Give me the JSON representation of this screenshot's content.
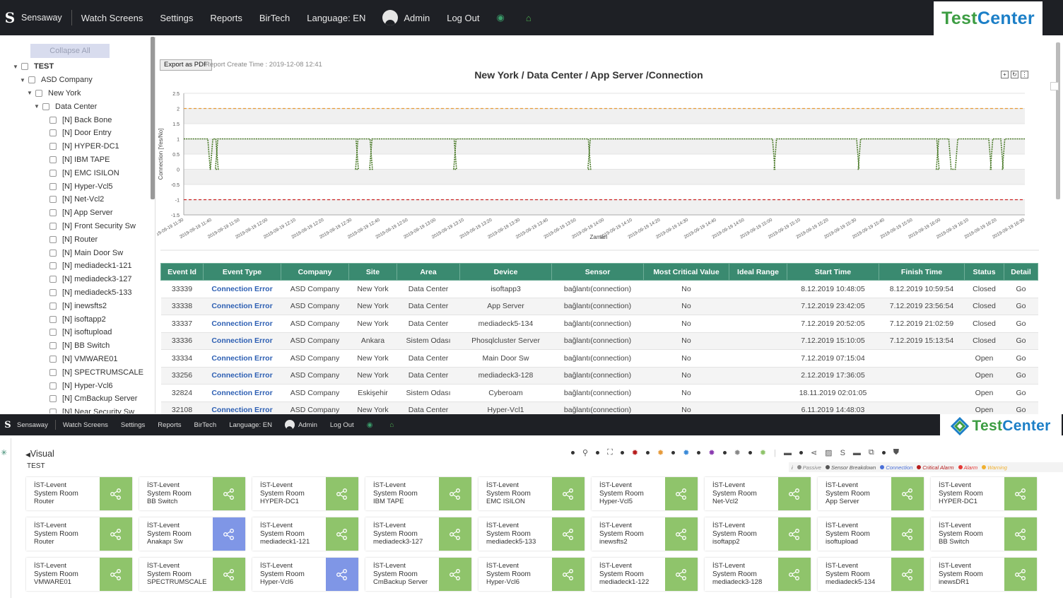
{
  "window1": {
    "brand": "Sensaway",
    "nav": [
      "Watch Screens",
      "Settings",
      "Reports",
      "BirTech",
      "Language: EN",
      "Admin",
      "Log Out"
    ],
    "logo": {
      "part1": "Test",
      "part2": "Center"
    }
  },
  "sidebar": {
    "collapse_label": "Collapse All",
    "root": "TEST",
    "company": "ASD Company",
    "site": "New York",
    "area": "Data Center",
    "devices": [
      "[N] Back Bone",
      "[N] Door Entry",
      "[N] HYPER-DC1",
      "[N] IBM TAPE",
      "[N] EMC ISILON",
      "[N] Hyper-Vcl5",
      "[N] Net-Vcl2",
      "[N] App Server",
      "[N] Front Security Sw",
      "[N] Router",
      "[N] Main Door Sw",
      "[N] mediadeck1-121",
      "[N] mediadeck3-127",
      "[N] mediadeck5-133",
      "[N] inewsfts2",
      "[N] isoftapp2",
      "[N] isoftupload",
      "[N] BB Switch",
      "[N] VMWARE01",
      "[N] SPECTRUMSCALE",
      "[N] Hyper-Vcl6",
      "[N] CmBackup Server",
      "[N] Near Security Sw"
    ]
  },
  "report": {
    "export_label": "Export as PDF",
    "create_time": "Report Create Time : 2019-12-08 12:41"
  },
  "chart_data": {
    "type": "line",
    "title": "New York / Data Center / App Server /Connection",
    "ylabel": "Connection [Yes/No]",
    "xlabel": "Zaman",
    "ylim": [
      -1.5,
      2.5
    ],
    "yticks": [
      "2.5",
      "2",
      "1.5",
      "1",
      "0.5",
      "0",
      "-0.5",
      "-1",
      "-1.5"
    ],
    "xticks": [
      "2019-09-19 11:30",
      "2019-09-19 11:40",
      "2019-09-19 11:50",
      "2019-09-19 12:00",
      "2019-09-19 12:10",
      "2019-09-19 12:20",
      "2019-09-19 12:30",
      "2019-09-19 12:40",
      "2019-09-19 12:50",
      "2019-09-19 13:00",
      "2019-09-19 13:10",
      "2019-09-19 13:20",
      "2019-09-19 13:30",
      "2019-09-19 13:40",
      "2019-09-19 13:50",
      "2019-09-19 14:00",
      "2019-09-19 14:10",
      "2019-09-19 14:20",
      "2019-09-19 14:30",
      "2019-09-19 14:40",
      "2019-09-19 14:50",
      "2019-09-19 15:00",
      "2019-09-19 15:10",
      "2019-09-19 15:20",
      "2019-09-19 15:30",
      "2019-09-19 15:40",
      "2019-09-19 15:50",
      "2019-09-19 16:00",
      "2019-09-19 16:10",
      "2019-09-19 16:20",
      "2019-09-19 16:30"
    ],
    "threshold_warning": 2,
    "threshold_critical": -1,
    "colors": {
      "series": "#4a7a28",
      "warning": "#e69a3a",
      "critical": "#cc2222"
    },
    "drops_minutes": [
      [
        12.0,
        14.5
      ],
      [
        16.0,
        17.0
      ],
      [
        86.0,
        87.0
      ],
      [
        93.0,
        94.0
      ],
      [
        135.0,
        136.0
      ],
      [
        202.0,
        203.0
      ],
      [
        294.0,
        296.0
      ],
      [
        336.0,
        338.0
      ],
      [
        376.0,
        377.0
      ],
      [
        382.0,
        386.5
      ],
      [
        402.0,
        404.0
      ],
      [
        408.0,
        410.0
      ]
    ],
    "x_minutes_range": [
      0,
      420
    ]
  },
  "table": {
    "headers": [
      "Event Id",
      "Event Type",
      "Company",
      "Site",
      "Area",
      "Device",
      "Sensor",
      "Most Critical Value",
      "Ideal Range",
      "Start Time",
      "Finish Time",
      "Status",
      "Detail"
    ],
    "rows": [
      [
        "33339",
        "Connection Error",
        "ASD Company",
        "New York",
        "Data Center",
        "isoftapp3",
        "bağlantı(connection)",
        "No",
        "",
        "8.12.2019 10:48:05",
        "8.12.2019 10:59:54",
        "Closed",
        "Go"
      ],
      [
        "33338",
        "Connection Error",
        "ASD Company",
        "New York",
        "Data Center",
        "App Server",
        "bağlantı(connection)",
        "No",
        "",
        "7.12.2019 23:42:05",
        "7.12.2019 23:56:54",
        "Closed",
        "Go"
      ],
      [
        "33337",
        "Connection Error",
        "ASD Company",
        "New York",
        "Data Center",
        "mediadeck5-134",
        "bağlantı(connection)",
        "No",
        "",
        "7.12.2019 20:52:05",
        "7.12.2019 21:02:59",
        "Closed",
        "Go"
      ],
      [
        "33336",
        "Connection Error",
        "ASD Company",
        "Ankara",
        "Sistem Odası",
        "Phosqlcluster Server",
        "bağlantı(connection)",
        "No",
        "",
        "7.12.2019 15:10:05",
        "7.12.2019 15:13:54",
        "Closed",
        "Go"
      ],
      [
        "33334",
        "Connection Error",
        "ASD Company",
        "New York",
        "Data Center",
        "Main Door Sw",
        "bağlantı(connection)",
        "No",
        "",
        "7.12.2019 07:15:04",
        "",
        "Open",
        "Go"
      ],
      [
        "33256",
        "Connection Error",
        "ASD Company",
        "New York",
        "Data Center",
        "mediadeck3-128",
        "bağlantı(connection)",
        "No",
        "",
        "2.12.2019 17:36:05",
        "",
        "Open",
        "Go"
      ],
      [
        "32824",
        "Connection Error",
        "ASD Company",
        "Eskişehir",
        "Sistem Odası",
        "Cyberoam",
        "bağlantı(connection)",
        "No",
        "",
        "18.11.2019 02:01:05",
        "",
        "Open",
        "Go"
      ],
      [
        "32108",
        "Connection Error",
        "ASD Company",
        "New York",
        "Data Center",
        "Hyper-Vcl1",
        "bağlantı(connection)",
        "No",
        "",
        "6.11.2019 14:48:03",
        "",
        "Open",
        "Go"
      ]
    ]
  },
  "window2": {
    "brand": "Sensaway",
    "nav": [
      "Watch Screens",
      "Settings",
      "Reports",
      "BirTech",
      "Language: EN",
      "Admin",
      "Log Out"
    ],
    "logo": {
      "part1": "Test",
      "part2": "Center"
    }
  },
  "visual": {
    "back_label": "Visual",
    "subtitle": "TEST",
    "legend": [
      "i",
      "Passive",
      "Sensor Breakdown",
      "Connection",
      "Critical Alarm",
      "Alarm",
      "Warning"
    ],
    "legend_colors": [
      "#666",
      "#888",
      "#555",
      "#4a6fd8",
      "#b71c1c",
      "#e53935",
      "#f0b030"
    ],
    "tiles": [
      {
        "l1": "İST-Levent",
        "l2": "System Room",
        "l3": "Router",
        "blue": false
      },
      {
        "l1": "İST-Levent",
        "l2": "System Room",
        "l3": "BB Switch",
        "blue": false
      },
      {
        "l1": "İST-Levent",
        "l2": "System Room",
        "l3": "HYPER-DC1",
        "blue": false
      },
      {
        "l1": "İST-Levent",
        "l2": "System Room",
        "l3": "IBM TAPE",
        "blue": false
      },
      {
        "l1": "İST-Levent",
        "l2": "System Room",
        "l3": "EMC ISILON",
        "blue": false
      },
      {
        "l1": "İST-Levent",
        "l2": "System Room",
        "l3": "Hyper-Vcl5",
        "blue": false
      },
      {
        "l1": "İST-Levent",
        "l2": "System Room",
        "l3": "Net-Vcl2",
        "blue": false
      },
      {
        "l1": "İST-Levent",
        "l2": "System Room",
        "l3": "App Server",
        "blue": false
      },
      {
        "l1": "İST-Levent",
        "l2": "System Room",
        "l3": "HYPER-DC1",
        "blue": false
      },
      {
        "l1": "İST-Levent",
        "l2": "System Room",
        "l3": "Router",
        "blue": false
      },
      {
        "l1": "İST-Levent",
        "l2": "System Room",
        "l3": "Anakapı Sw",
        "blue": true
      },
      {
        "l1": "İST-Levent",
        "l2": "System Room",
        "l3": "mediadeck1-121",
        "blue": false
      },
      {
        "l1": "İST-Levent",
        "l2": "System Room",
        "l3": "mediadeck3-127",
        "blue": false
      },
      {
        "l1": "İST-Levent",
        "l2": "System Room",
        "l3": "mediadeck5-133",
        "blue": false
      },
      {
        "l1": "İST-Levent",
        "l2": "System Room",
        "l3": "inewsfts2",
        "blue": false
      },
      {
        "l1": "İST-Levent",
        "l2": "System Room",
        "l3": "isoftapp2",
        "blue": false
      },
      {
        "l1": "İST-Levent",
        "l2": "System Room",
        "l3": "isoftupload",
        "blue": false
      },
      {
        "l1": "İST-Levent",
        "l2": "System Room",
        "l3": "BB Switch",
        "blue": false
      },
      {
        "l1": "İST-Levent",
        "l2": "System Room",
        "l3": "VMWARE01",
        "blue": false
      },
      {
        "l1": "İST-Levent",
        "l2": "System Room",
        "l3": "SPECTRUMSCALE",
        "blue": false
      },
      {
        "l1": "İST-Levent",
        "l2": "System Room",
        "l3": "Hyper-Vcl6",
        "blue": true
      },
      {
        "l1": "İST-Levent",
        "l2": "System Room",
        "l3": "CmBackup Server",
        "blue": false
      },
      {
        "l1": "İST-Levent",
        "l2": "System Room",
        "l3": "Hyper-Vcl6",
        "blue": false
      },
      {
        "l1": "İST-Levent",
        "l2": "System Room",
        "l3": "mediadeck1-122",
        "blue": false
      },
      {
        "l1": "İST-Levent",
        "l2": "System Room",
        "l3": "mediadeck3-128",
        "blue": false
      },
      {
        "l1": "İST-Levent",
        "l2": "System Room",
        "l3": "mediadeck5-134",
        "blue": false
      },
      {
        "l1": "İST-Levent",
        "l2": "System Room",
        "l3": "inewsDR1",
        "blue": false
      }
    ]
  }
}
